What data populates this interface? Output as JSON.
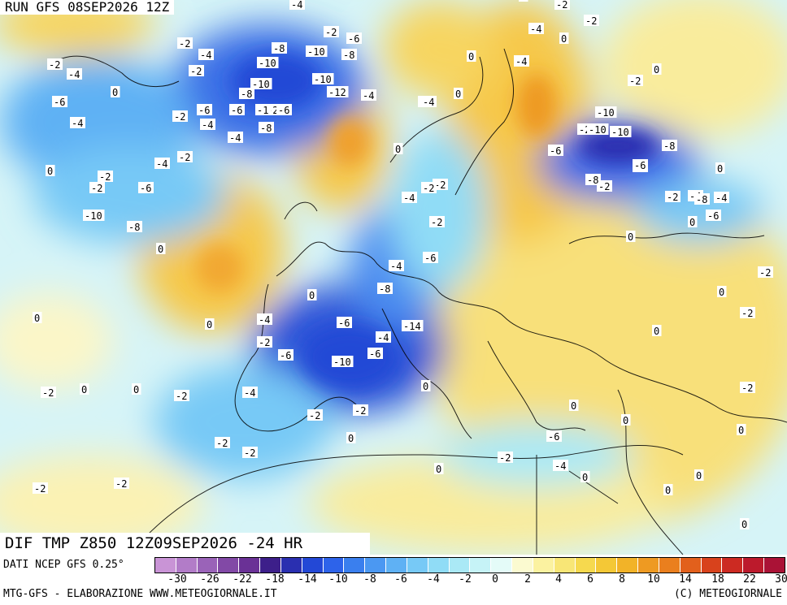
{
  "header": {
    "run": "RUN GFS 08SEP2026 12Z"
  },
  "map_title": "DIF TMP Z850 12Z09SEP2026 -24 HR",
  "source_line": "DATI NCEP GFS 0.25°",
  "credits_left": "MTG-GFS - ELABORAZIONE WWW.METEOGIORNALE.IT",
  "credits_right": "(C) METEOGIORNALE",
  "legend": {
    "colors": [
      "#c994d6",
      "#b27cc8",
      "#9a63b8",
      "#8249a6",
      "#6a3196",
      "#3d1f8a",
      "#2a2fb0",
      "#2348d6",
      "#2d63ea",
      "#3a7fee",
      "#4b98f2",
      "#5fb1f4",
      "#77c9f6",
      "#90dcf6",
      "#aae9f6",
      "#c6f3f7",
      "#e4fbf8",
      "#fbfad0",
      "#fbf2a0",
      "#f8e676",
      "#f6d94e",
      "#f4c836",
      "#f2b328",
      "#ee9a22",
      "#ea7f1e",
      "#e2601c",
      "#d8421c",
      "#cc2a22",
      "#bc1a2c",
      "#aa1236"
    ],
    "ticks": [
      "-30",
      "-26",
      "-22",
      "-18",
      "-14",
      "-10",
      "-8",
      "-6",
      "-4",
      "-2",
      "0",
      "2",
      "4",
      "6",
      "8",
      "10",
      "14",
      "18",
      "22",
      "30"
    ]
  },
  "map_values": [
    {
      "t": "-2"
    },
    {
      "t": "-4"
    },
    {
      "t": "-6"
    },
    {
      "t": "-4"
    },
    {
      "t": "0"
    },
    {
      "t": "-2"
    },
    {
      "t": "-4"
    },
    {
      "t": "-2"
    },
    {
      "t": "-6"
    },
    {
      "t": "-4"
    },
    {
      "t": "-2"
    },
    {
      "t": "-4"
    },
    {
      "t": "-6"
    },
    {
      "t": "-2"
    },
    {
      "t": "-2"
    },
    {
      "t": "-4"
    },
    {
      "t": "-2"
    },
    {
      "t": "-6"
    },
    {
      "t": "-8"
    },
    {
      "t": "-10"
    },
    {
      "t": "-10"
    },
    {
      "t": "-8"
    },
    {
      "t": "-10"
    },
    {
      "t": "-2"
    },
    {
      "t": "-6"
    },
    {
      "t": "-4"
    },
    {
      "t": "-10"
    },
    {
      "t": "-8"
    },
    {
      "t": "-10"
    },
    {
      "t": "-12"
    },
    {
      "t": "-2"
    },
    {
      "t": "-1"
    },
    {
      "t": "-6"
    },
    {
      "t": "-8"
    },
    {
      "t": "-8"
    },
    {
      "t": "-4"
    },
    {
      "t": "-2"
    },
    {
      "t": "0"
    },
    {
      "t": "-4"
    },
    {
      "t": "0"
    },
    {
      "t": "-2"
    },
    {
      "t": "-4"
    },
    {
      "t": "-2"
    },
    {
      "t": "-2"
    },
    {
      "t": "-4"
    },
    {
      "t": "-2"
    },
    {
      "t": "-2"
    },
    {
      "t": "-2"
    },
    {
      "t": "-6"
    },
    {
      "t": "-4"
    },
    {
      "t": "-8"
    },
    {
      "t": "-4"
    },
    {
      "t": "-6"
    },
    {
      "t": "-10"
    },
    {
      "t": "-2"
    },
    {
      "t": "-2"
    },
    {
      "t": "-6"
    },
    {
      "t": "-8"
    },
    {
      "t": "-6"
    },
    {
      "t": "-14"
    },
    {
      "t": "-10"
    },
    {
      "t": "-6"
    },
    {
      "t": "-4"
    },
    {
      "t": "-6"
    },
    {
      "t": "-4"
    },
    {
      "t": "-2"
    },
    {
      "t": "-6"
    },
    {
      "t": "-4"
    },
    {
      "t": "-2"
    },
    {
      "t": "-2"
    },
    {
      "t": "-2"
    },
    {
      "t": "-2"
    },
    {
      "t": "-2"
    },
    {
      "t": "-2"
    },
    {
      "t": "-2"
    },
    {
      "t": "-2"
    },
    {
      "t": "-6"
    },
    {
      "t": "-2"
    },
    {
      "t": "-4"
    },
    {
      "t": "-4"
    },
    {
      "t": "-6"
    },
    {
      "t": "-10"
    },
    {
      "t": "-10"
    },
    {
      "t": "-2"
    },
    {
      "t": "-8"
    },
    {
      "t": "-6"
    },
    {
      "t": "-2"
    },
    {
      "t": "-8"
    },
    {
      "t": "-4"
    },
    {
      "t": "-2"
    },
    {
      "t": "-2"
    },
    {
      "t": "0"
    },
    {
      "t": "0"
    },
    {
      "t": "0"
    },
    {
      "t": "0"
    },
    {
      "t": "0"
    },
    {
      "t": "0"
    },
    {
      "t": "0"
    },
    {
      "t": "0"
    },
    {
      "t": "0"
    },
    {
      "t": "0"
    },
    {
      "t": "0"
    },
    {
      "t": "0"
    },
    {
      "t": "0"
    },
    {
      "t": "0"
    },
    {
      "t": "0"
    },
    {
      "t": "0"
    },
    {
      "t": "0"
    },
    {
      "t": "0"
    },
    {
      "t": "0"
    },
    {
      "t": "0"
    },
    {
      "t": "0"
    },
    {
      "t": "0"
    },
    {
      "t": "0"
    },
    {
      "t": "0"
    },
    {
      "t": "0"
    },
    {
      "t": "0"
    },
    {
      "t": "0"
    }
  ]
}
